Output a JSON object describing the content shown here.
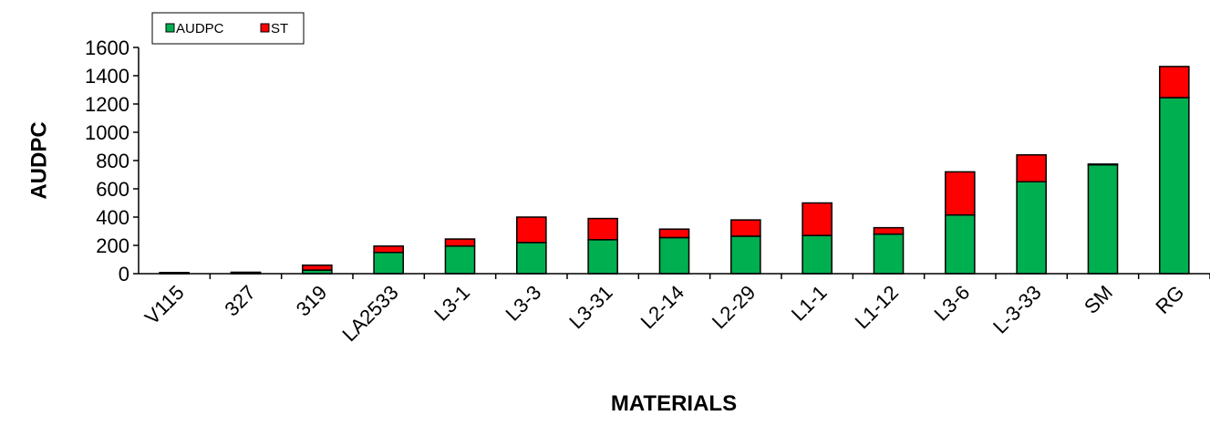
{
  "chart_data": {
    "type": "bar",
    "stacked": true,
    "xlabel": "MATERIALS",
    "ylabel": "AUDPC",
    "ylim": [
      0,
      1600
    ],
    "yticks": [
      0,
      200,
      400,
      600,
      800,
      1000,
      1200,
      1400,
      1600
    ],
    "grid": false,
    "legend_position": "top-left",
    "categories": [
      "V115",
      "327",
      "319",
      "LA2533",
      "L3-1",
      "L3-3",
      "L3-31",
      "L2-14",
      "L2-29",
      "L1-1",
      "L1-12",
      "L3-6",
      "L-3-33",
      "SM",
      "RG"
    ],
    "series": [
      {
        "name": "AUDPC",
        "color": "#00b050",
        "values": [
          5,
          8,
          25,
          150,
          195,
          220,
          240,
          255,
          265,
          270,
          280,
          415,
          650,
          770,
          1245
        ]
      },
      {
        "name": "ST",
        "color": "#ff0000",
        "values": [
          3,
          2,
          35,
          45,
          50,
          180,
          150,
          60,
          115,
          230,
          45,
          305,
          190,
          5,
          220
        ]
      }
    ]
  }
}
